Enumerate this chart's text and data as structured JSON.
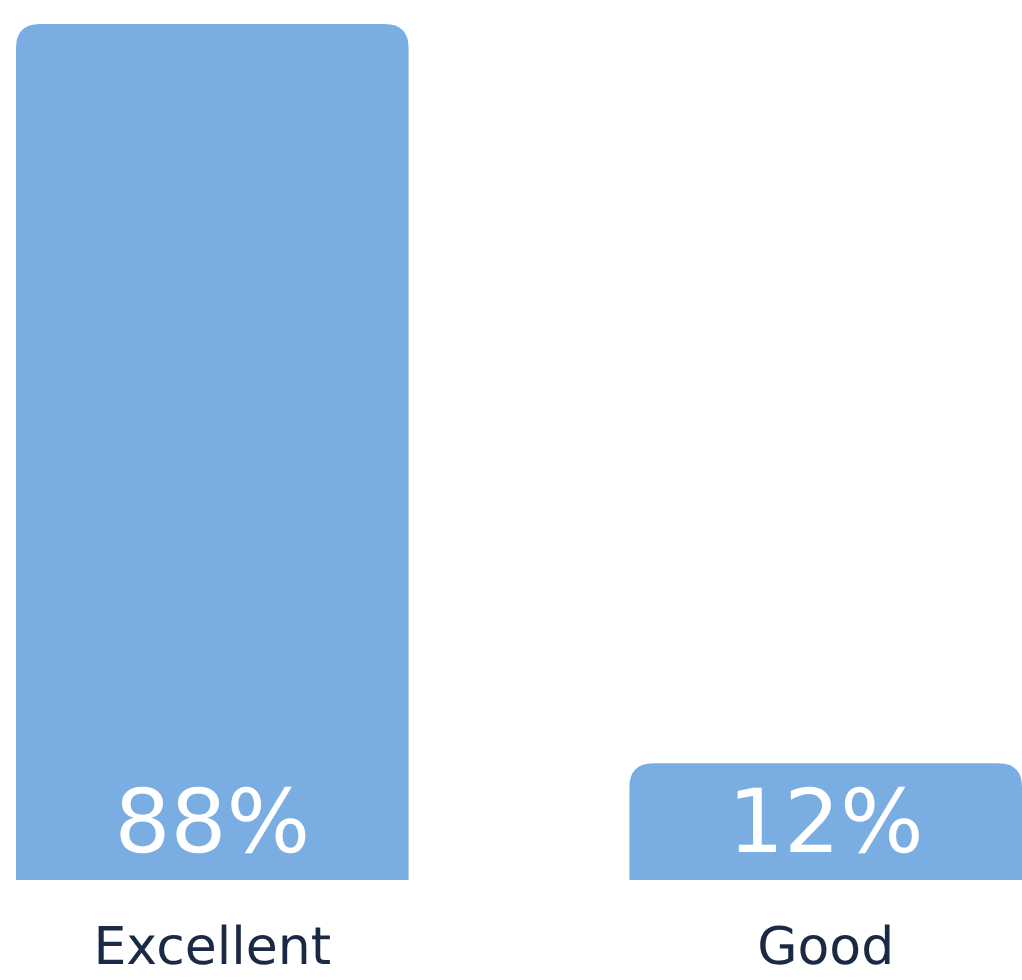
{
  "chart_data": {
    "type": "bar",
    "categories": [
      "Excellent",
      "Good"
    ],
    "values": [
      88,
      12
    ],
    "value_labels": [
      "88%",
      "12%"
    ],
    "color": "#7aade1"
  }
}
